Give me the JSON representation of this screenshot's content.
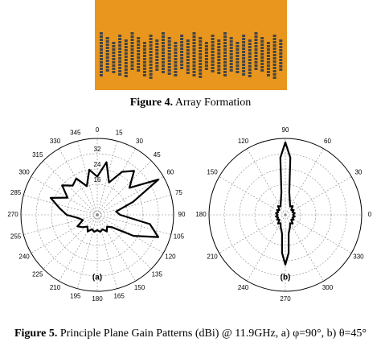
{
  "figure4": {
    "label": "Figure 4.",
    "text": "Array Formation"
  },
  "figure5": {
    "label": "Figure 5.",
    "text": "Principle Plane Gain Patterns (dBi) @ 11.9GHz, a) φ=90°, b) θ=45°"
  },
  "chart_data": [
    {
      "type": "polar",
      "label": "(a)",
      "zero_location": "top",
      "direction": "clockwise",
      "color": "#000000",
      "rlim": [
        0,
        40
      ],
      "rticks": [
        16,
        24,
        32
      ],
      "angle_ticks": [
        0,
        15,
        30,
        45,
        60,
        75,
        90,
        105,
        120,
        135,
        150,
        165,
        180,
        195,
        210,
        225,
        240,
        255,
        270,
        285,
        300,
        315,
        330,
        345
      ],
      "theta": [
        0,
        10,
        20,
        30,
        40,
        50,
        60,
        70,
        80,
        90,
        100,
        110,
        120,
        130,
        140,
        150,
        160,
        170,
        180,
        190,
        200,
        210,
        220,
        230,
        240,
        250,
        260,
        270,
        280,
        290,
        300,
        310,
        320,
        330,
        340,
        350
      ],
      "values": [
        20,
        28,
        18,
        26,
        30,
        22,
        37,
        20,
        10,
        12,
        28,
        34,
        22,
        10,
        8,
        10,
        8,
        9,
        8,
        9,
        8,
        10,
        8,
        10,
        12,
        8,
        10,
        16,
        20,
        26,
        18,
        24,
        20,
        22,
        16,
        24
      ]
    },
    {
      "type": "polar",
      "label": "(b)",
      "zero_location": "right",
      "direction": "counterclockwise",
      "color": "#000000",
      "rlim": [
        0,
        40
      ],
      "angle_ticks": [
        0,
        30,
        60,
        90,
        120,
        150,
        180,
        210,
        240,
        270,
        300,
        330
      ],
      "theta": [
        0,
        10,
        20,
        30,
        40,
        50,
        60,
        70,
        80,
        85,
        90,
        95,
        100,
        110,
        120,
        130,
        140,
        150,
        160,
        170,
        180,
        190,
        200,
        210,
        220,
        230,
        240,
        250,
        260,
        265,
        270,
        275,
        280,
        290,
        300,
        310,
        320,
        330,
        340,
        350
      ],
      "values": [
        4,
        5,
        4,
        5,
        4,
        6,
        5,
        7,
        12,
        30,
        38,
        30,
        12,
        7,
        5,
        6,
        4,
        5,
        4,
        5,
        4,
        5,
        4,
        5,
        4,
        6,
        5,
        7,
        10,
        20,
        26,
        20,
        10,
        7,
        5,
        6,
        4,
        5,
        4,
        5
      ]
    }
  ]
}
